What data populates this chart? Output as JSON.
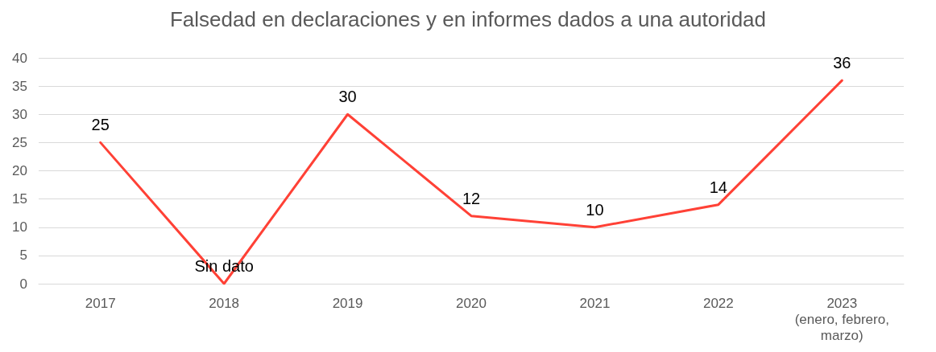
{
  "chart_data": {
    "type": "line",
    "title": "Falsedad en declaraciones y en informes dados a una autoridad",
    "categories": [
      "2017",
      "2018",
      "2019",
      "2020",
      "2021",
      "2022",
      "2023\n(enero, febrero,\nmarzo)"
    ],
    "series": [
      {
        "color": "#ff4136",
        "values": [
          25,
          0,
          30,
          12,
          10,
          14,
          36
        ],
        "value_labels": [
          "25",
          "Sin dato",
          "30",
          "12",
          "10",
          "14",
          "36"
        ]
      }
    ],
    "ylim": [
      0,
      40
    ],
    "yticks": [
      0,
      5,
      10,
      15,
      20,
      25,
      30,
      35,
      40
    ],
    "grid": "y",
    "marker": "none",
    "line_style": "solid"
  }
}
